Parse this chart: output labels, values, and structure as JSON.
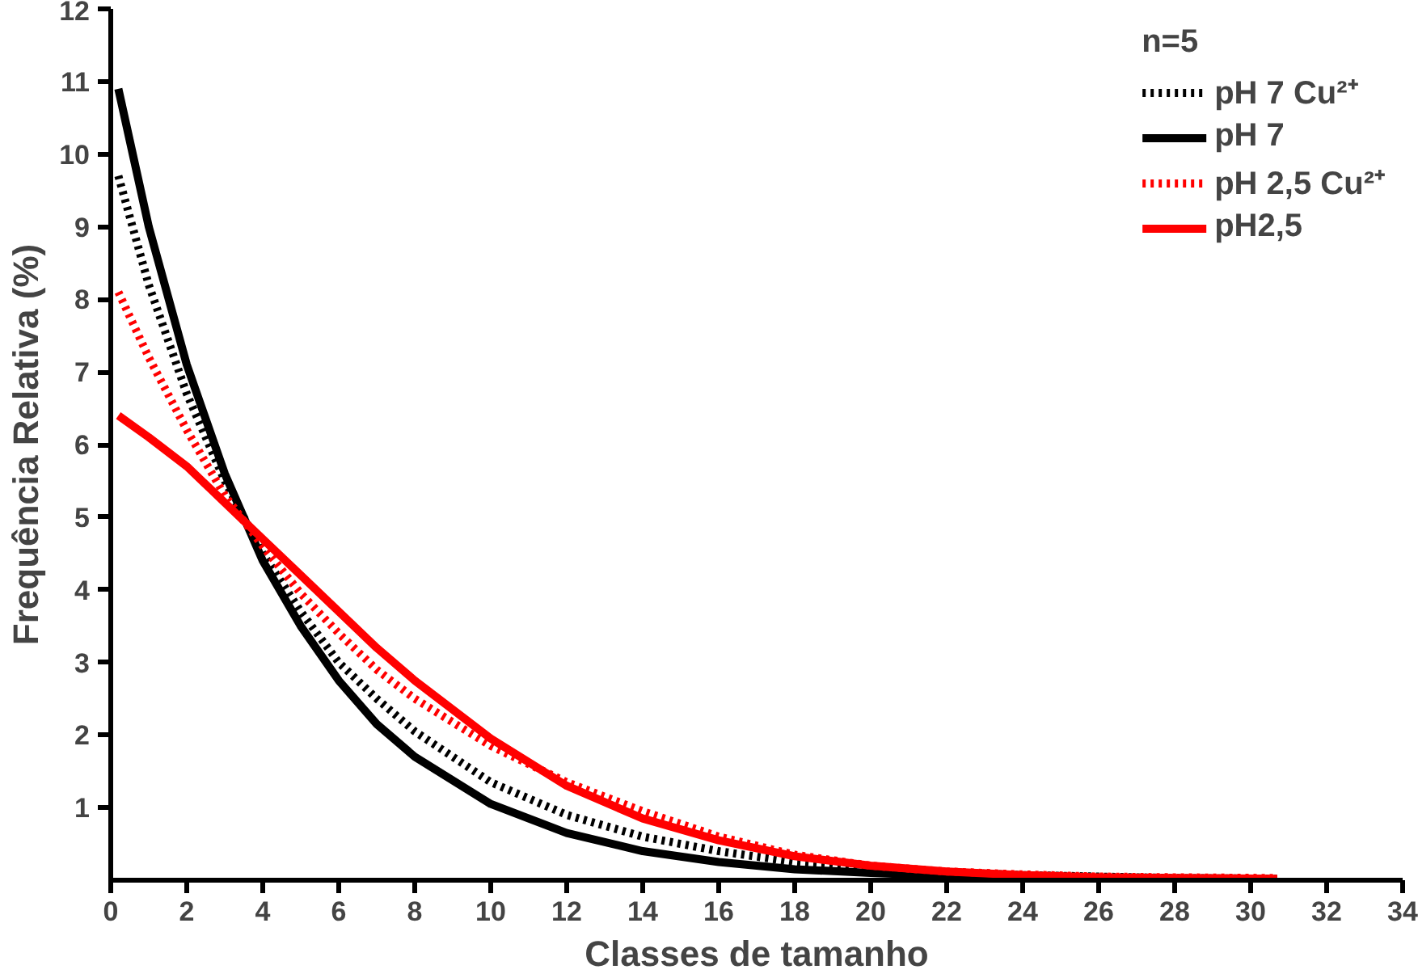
{
  "chart_data": {
    "type": "line",
    "xlabel": "Classes de tamanho",
    "ylabel": "Frequência Relativa (%)",
    "legend_title": "n=5",
    "legend": "top right",
    "grid": false,
    "xlim": [
      0,
      34
    ],
    "ylim": [
      0,
      12
    ],
    "xticks": [
      0,
      2,
      4,
      6,
      8,
      10,
      12,
      14,
      16,
      18,
      20,
      22,
      24,
      26,
      28,
      30,
      32,
      34
    ],
    "yticks": [
      1,
      2,
      3,
      4,
      5,
      6,
      7,
      8,
      9,
      10,
      11,
      12
    ],
    "x": [
      0.2,
      1,
      2,
      3,
      4,
      5,
      6,
      7,
      8,
      10,
      12,
      14,
      16,
      18,
      20,
      22,
      24,
      26,
      28,
      30.7
    ],
    "series": [
      {
        "name": "pH 7 Cu²⁺",
        "color": "#000000",
        "line_style": "dotted",
        "values": [
          9.7,
          8.2,
          6.7,
          5.5,
          4.5,
          3.7,
          3.0,
          2.5,
          2.05,
          1.35,
          0.9,
          0.6,
          0.4,
          0.25,
          0.17,
          0.11,
          0.07,
          0.05,
          0.03,
          0.02
        ]
      },
      {
        "name": "pH 7",
        "color": "#000000",
        "line_style": "solid",
        "values": [
          10.9,
          9.0,
          7.1,
          5.6,
          4.4,
          3.5,
          2.75,
          2.15,
          1.7,
          1.05,
          0.65,
          0.4,
          0.25,
          0.15,
          0.1,
          0.06,
          0.04,
          0.03,
          0.02,
          0.01
        ]
      },
      {
        "name": "pH 2,5 Cu²⁺",
        "color": "#ff0000",
        "line_style": "dotted",
        "values": [
          8.1,
          7.2,
          6.2,
          5.3,
          4.6,
          3.95,
          3.4,
          2.9,
          2.5,
          1.85,
          1.35,
          0.95,
          0.6,
          0.35,
          0.2,
          0.12,
          0.08,
          0.05,
          0.04,
          0.03
        ]
      },
      {
        "name": "pH2,5",
        "color": "#ff0000",
        "line_style": "solid",
        "values": [
          6.4,
          6.1,
          5.7,
          5.2,
          4.7,
          4.2,
          3.7,
          3.2,
          2.75,
          1.95,
          1.3,
          0.85,
          0.55,
          0.33,
          0.2,
          0.12,
          0.07,
          0.04,
          0.03,
          0.02
        ]
      }
    ]
  }
}
